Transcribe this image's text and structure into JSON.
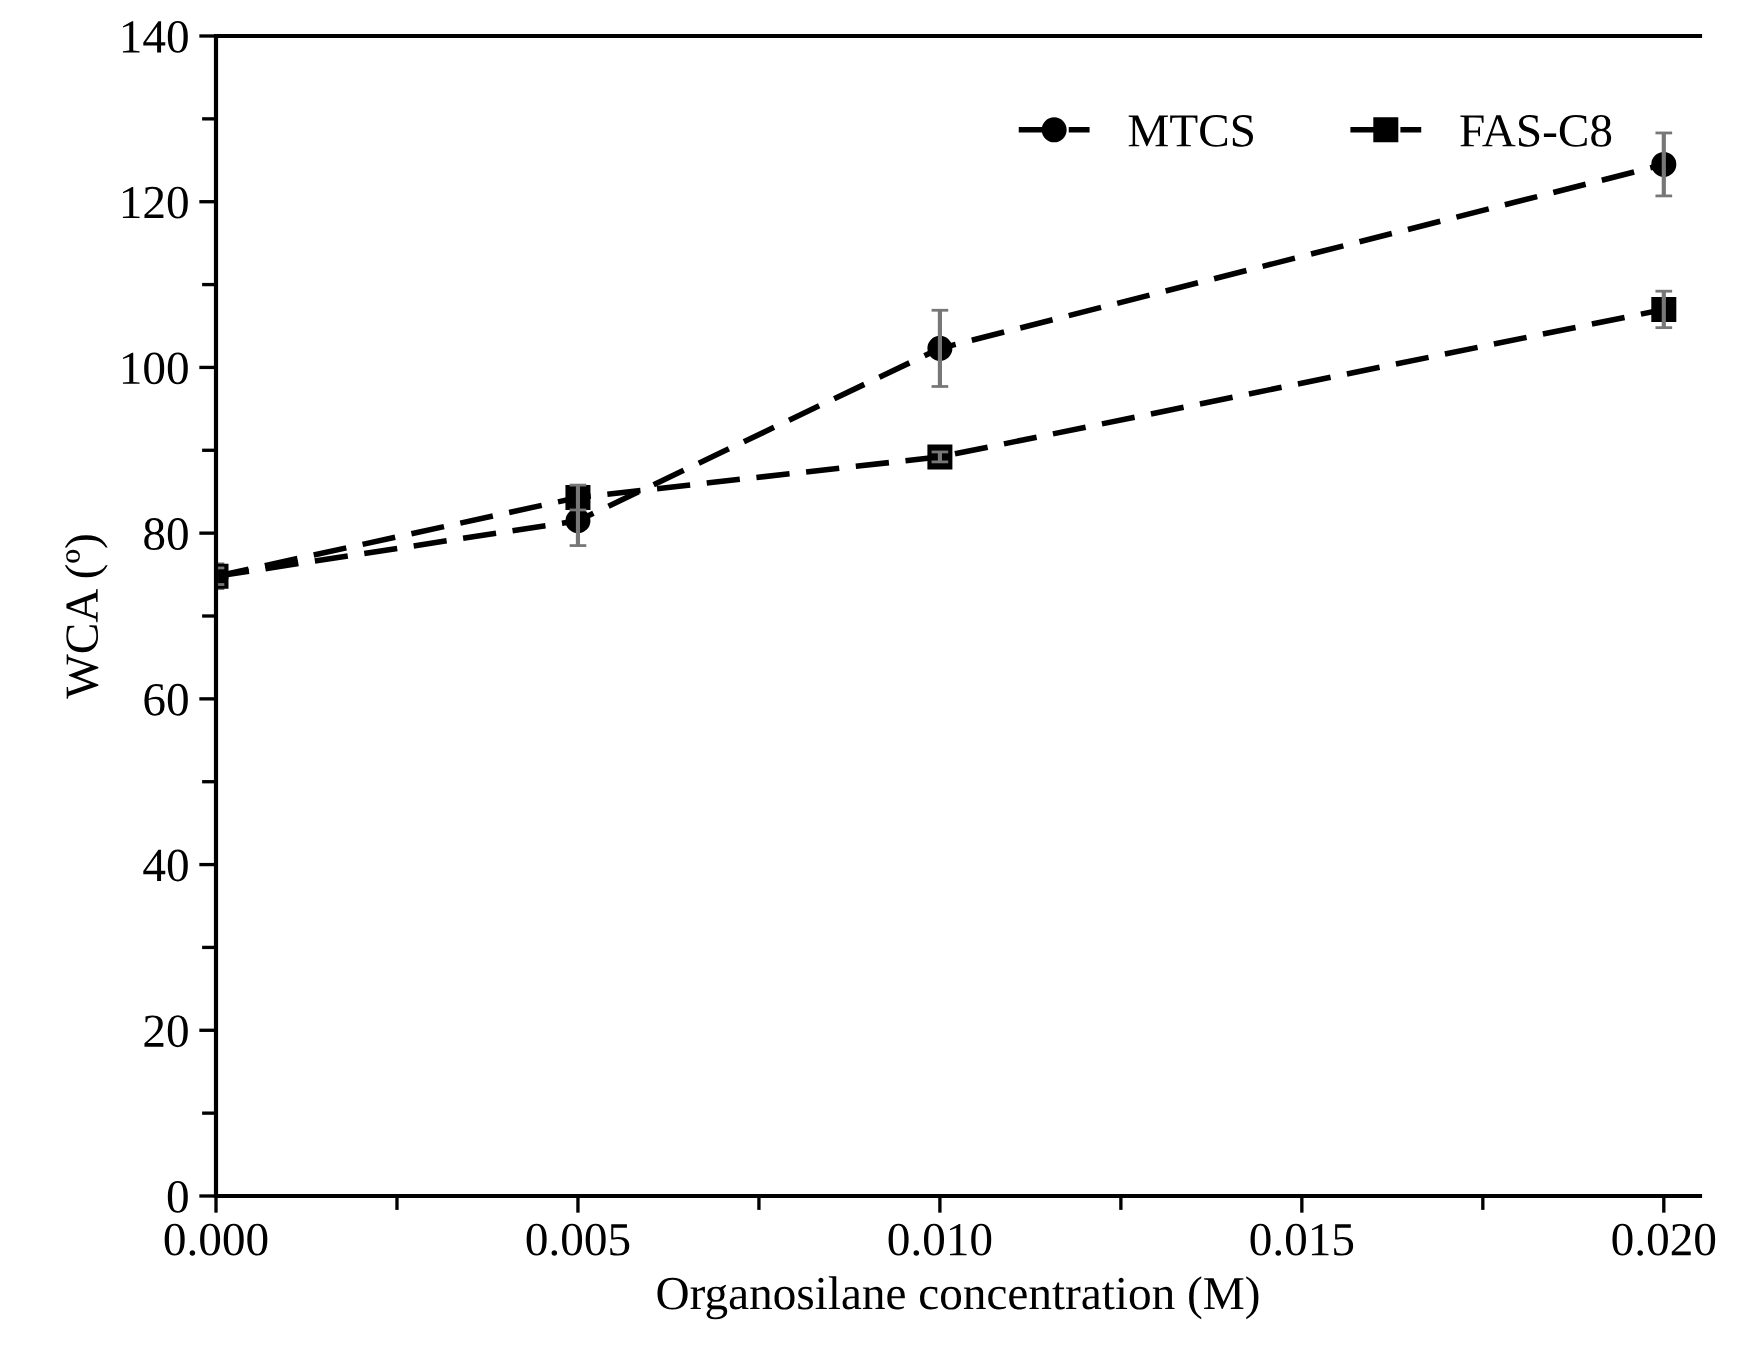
{
  "chart_data": {
    "type": "line",
    "xlabel": "Organosilane concentration (M)",
    "ylabel": "WCA (º)",
    "xlim": [
      0,
      0.0205
    ],
    "ylim": [
      0,
      140
    ],
    "xticks": [
      {
        "value": 0,
        "label": "0.000"
      },
      {
        "value": 0.005,
        "label": "0.005"
      },
      {
        "value": 0.01,
        "label": "0.010"
      },
      {
        "value": 0.015,
        "label": "0.015"
      },
      {
        "value": 0.02,
        "label": "0.020"
      }
    ],
    "yticks": [
      0,
      20,
      40,
      60,
      80,
      100,
      120,
      140
    ],
    "x": [
      0,
      0.005,
      0.01,
      0.02
    ],
    "series": [
      {
        "name": "MTCS",
        "color": "#000000",
        "marker": "circle",
        "values": [
          74.8,
          81.5,
          102.3,
          124.5
        ],
        "errors": [
          1.5,
          3,
          4.6,
          3.8
        ]
      },
      {
        "name": "FAS-C8",
        "color": "#000000",
        "marker": "square",
        "values": [
          74.8,
          84.3,
          89.2,
          107
        ],
        "errors": [
          1,
          1.5,
          0.6,
          2.2
        ]
      }
    ],
    "line_style": "dashed",
    "grid": false,
    "legend": "top right"
  }
}
